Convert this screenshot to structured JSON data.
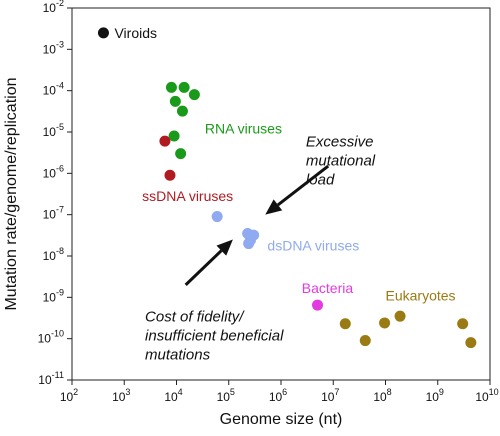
{
  "chart_data": {
    "type": "scatter",
    "xlabel": "Genome size (nt)",
    "ylabel": "Mutation rate/genome/replication",
    "xscale": "log",
    "yscale": "log",
    "xlim": [
      100,
      10000000000
    ],
    "ylim": [
      1e-11,
      0.01
    ],
    "x_ticks": [
      {
        "value": 100,
        "base": "10",
        "exp": "2"
      },
      {
        "value": 1000,
        "base": "10",
        "exp": "3"
      },
      {
        "value": 10000,
        "base": "10",
        "exp": "4"
      },
      {
        "value": 100000,
        "base": "10",
        "exp": "5"
      },
      {
        "value": 1000000,
        "base": "10",
        "exp": "6"
      },
      {
        "value": 10000000,
        "base": "10",
        "exp": "7"
      },
      {
        "value": 100000000,
        "base": "10",
        "exp": "8"
      },
      {
        "value": 1000000000,
        "base": "10",
        "exp": "9"
      },
      {
        "value": 10000000000,
        "base": "10",
        "exp": "10"
      }
    ],
    "y_ticks": [
      {
        "value": 0.01,
        "base": "10",
        "exp": "-2"
      },
      {
        "value": 0.001,
        "base": "10",
        "exp": "-3"
      },
      {
        "value": 0.0001,
        "base": "10",
        "exp": "-4"
      },
      {
        "value": 1e-05,
        "base": "10",
        "exp": "-5"
      },
      {
        "value": 1e-06,
        "base": "10",
        "exp": "-6"
      },
      {
        "value": 1e-07,
        "base": "10",
        "exp": "-7"
      },
      {
        "value": 1e-08,
        "base": "10",
        "exp": "-8"
      },
      {
        "value": 1e-09,
        "base": "10",
        "exp": "-9"
      },
      {
        "value": 1e-10,
        "base": "10",
        "exp": "-10"
      },
      {
        "value": 1e-11,
        "base": "10",
        "exp": "-11"
      }
    ],
    "series": [
      {
        "name": "Viroids",
        "color": "#111111",
        "points": [
          [
            400,
            0.0025
          ]
        ]
      },
      {
        "name": "RNA viruses",
        "color": "#1a9a1a",
        "points": [
          [
            8000,
            0.00012
          ],
          [
            14000,
            0.00012
          ],
          [
            9500,
            5.5e-05
          ],
          [
            22000,
            8e-05
          ],
          [
            9000,
            8e-06
          ],
          [
            13000,
            3.2e-05
          ],
          [
            12000,
            3e-06
          ]
        ]
      },
      {
        "name": "ssDNA viruses",
        "color": "#b01b22",
        "points": [
          [
            6000,
            6e-06
          ],
          [
            7500,
            9e-07
          ]
        ]
      },
      {
        "name": "dsDNA viruses",
        "color": "#8faaf0",
        "points": [
          [
            60000,
            9e-08
          ],
          [
            230000,
            3.5e-08
          ],
          [
            260000,
            2.4e-08
          ],
          [
            300000,
            3.2e-08
          ],
          [
            240000,
            2e-08
          ]
        ]
      },
      {
        "name": "Bacteria",
        "color": "#e23be0",
        "points": [
          [
            5000000,
            6.5e-10
          ]
        ]
      },
      {
        "name": "Eukaryotes",
        "color": "#9a7a12",
        "points": [
          [
            17000000,
            2.3e-10
          ],
          [
            41000000,
            9e-11
          ],
          [
            96000000,
            2.4e-10
          ],
          [
            190000000,
            3.5e-10
          ],
          [
            3000000000,
            2.3e-10
          ],
          [
            4300000000,
            8e-11
          ]
        ]
      }
    ],
    "series_labels": [
      {
        "series": "Viroids",
        "text": "Viroids",
        "x": 650,
        "y": 0.0025
      },
      {
        "series": "RNA viruses",
        "text": "RNA viruses",
        "x": 35000,
        "y": 1.2e-05
      },
      {
        "series": "ssDNA viruses",
        "text": "ssDNA viruses",
        "x": 2200,
        "y": 2.8e-07
      },
      {
        "series": "dsDNA viruses",
        "text": "dsDNA viruses",
        "x": 550000,
        "y": 1.8e-08
      },
      {
        "series": "Bacteria",
        "text": "Bacteria",
        "x": 2500000,
        "y": 1.7e-09
      },
      {
        "series": "Eukaryotes",
        "text": "Eukaryotes",
        "x": 100000000,
        "y": 1.1e-09
      }
    ],
    "annotations": [
      {
        "lines": [
          "Excessive",
          "mutational",
          "load"
        ],
        "x": 3000000,
        "y": 4.5e-06,
        "anchor": "start"
      },
      {
        "lines": [
          "Cost of fidelity/",
          "insufficient beneficial",
          "mutations"
        ],
        "x": 2500,
        "y": 2.6e-10,
        "anchor": "start"
      }
    ],
    "arrows": [
      {
        "from": [
          8000000,
          1.5e-06
        ],
        "to": [
          500000,
          1e-07
        ]
      },
      {
        "from": [
          15000,
          2e-09
        ],
        "to": [
          120000,
          2.5e-08
        ]
      }
    ]
  }
}
